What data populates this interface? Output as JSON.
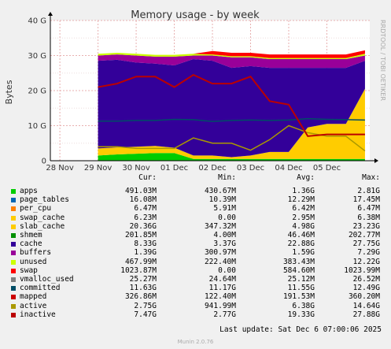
{
  "chart_data": {
    "type": "area",
    "title": "Memory usage - by week",
    "ylabel": "Bytes",
    "side_label": "RRDTOOL / TOBI OETIKER",
    "x_ticks": [
      "28 Nov",
      "29 Nov",
      "30 Nov",
      "01 Dec",
      "02 Dec",
      "03 Dec",
      "04 Dec",
      "05 Dec"
    ],
    "y_ticks": [
      "0",
      "10 G",
      "20 G",
      "30 G",
      "40 G"
    ],
    "ylim": [
      0,
      40
    ],
    "y_unit": "G",
    "x_domain": [
      "27 Nov 18:00",
      "06 Dec 03:00"
    ],
    "data_start": "29 Nov 00:00",
    "grid": true,
    "stacked_series": [
      {
        "name": "apps",
        "color": "#00cc00",
        "cur": "491.03M",
        "min": "430.67M",
        "avg": "1.36G",
        "max": "2.81G"
      },
      {
        "name": "page_tables",
        "color": "#0066b3",
        "cur": "16.08M",
        "min": "10.39M",
        "avg": "12.29M",
        "max": "17.45M"
      },
      {
        "name": "per_cpu",
        "color": "#ff8000",
        "cur": "6.47M",
        "min": "5.91M",
        "avg": "6.42M",
        "max": "6.47M"
      },
      {
        "name": "swap_cache",
        "color": "#ffcc00",
        "cur": "6.23M",
        "min": "0.00",
        "avg": "2.95M",
        "max": "6.38M"
      },
      {
        "name": "slab_cache",
        "color": "#ffcc00",
        "cur": "20.36G",
        "min": "347.32M",
        "avg": "4.98G",
        "max": "23.23G"
      },
      {
        "name": "shmem",
        "color": "#008f00",
        "cur": "201.85M",
        "min": "4.00M",
        "avg": "46.46M",
        "max": "202.77M"
      },
      {
        "name": "cache",
        "color": "#330099",
        "cur": "8.33G",
        "min": "3.37G",
        "avg": "22.88G",
        "max": "27.75G"
      },
      {
        "name": "buffers",
        "color": "#990099",
        "cur": "1.39G",
        "min": "300.97M",
        "avg": "1.59G",
        "max": "7.29G"
      },
      {
        "name": "unused",
        "color": "#ccff00",
        "cur": "467.99M",
        "min": "222.40M",
        "avg": "383.43M",
        "max": "12.22G"
      },
      {
        "name": "swap",
        "color": "#ff0000",
        "cur": "1023.87M",
        "min": "0.00",
        "avg": "584.60M",
        "max": "1023.99M"
      }
    ],
    "line_series": [
      {
        "name": "vmalloc_used",
        "color": "#808080",
        "cur": "25.27M",
        "min": "24.64M",
        "avg": "25.12M",
        "max": "26.52M"
      },
      {
        "name": "committed",
        "color": "#004d66",
        "cur": "11.63G",
        "min": "11.17G",
        "avg": "11.55G",
        "max": "12.49G"
      },
      {
        "name": "mapped",
        "color": "#cc0000",
        "cur": "326.86M",
        "min": "122.40M",
        "avg": "191.53M",
        "max": "360.20M"
      },
      {
        "name": "active",
        "color": "#aa9900",
        "cur": "2.75G",
        "min": "941.99M",
        "avg": "6.38G",
        "max": "14.64G"
      },
      {
        "name": "inactive",
        "color": "#bb0000",
        "cur": "7.47G",
        "min": "2.77G",
        "avg": "19.33G",
        "max": "27.88G"
      }
    ],
    "stack_profile": {
      "x": [
        "29 Nov 00:00",
        "29 Nov 12:00",
        "30 Nov 00:00",
        "30 Nov 12:00",
        "01 Dec 00:00",
        "01 Dec 12:00",
        "02 Dec 00:00",
        "02 Dec 12:00",
        "03 Dec 00:00",
        "03 Dec 12:00",
        "04 Dec 00:00",
        "04 Dec 12:00",
        "05 Dec 00:00",
        "05 Dec 12:00",
        "06 Dec 00:00"
      ],
      "apps": [
        1.5,
        1.8,
        2.0,
        2.2,
        2.2,
        0.5,
        0.5,
        0.5,
        0.5,
        0.5,
        0.5,
        0.5,
        0.5,
        0.5,
        0.5
      ],
      "slab_cache": [
        2.0,
        2.0,
        2.0,
        2.0,
        1.5,
        1.0,
        1.0,
        0.5,
        1.0,
        2.0,
        2.0,
        9.0,
        10.0,
        10.0,
        20.0
      ],
      "cache": [
        25.0,
        25.0,
        24.0,
        23.5,
        23.5,
        27.5,
        27.0,
        25.5,
        25.5,
        24.0,
        24.0,
        17.0,
        16.0,
        16.0,
        8.0
      ],
      "buffers": [
        1.5,
        1.5,
        2.0,
        2.0,
        2.5,
        1.0,
        1.5,
        3.0,
        2.5,
        2.5,
        2.5,
        2.5,
        2.5,
        2.5,
        1.5
      ],
      "unused": [
        0.5,
        0.5,
        0.5,
        0.5,
        0.5,
        0.5,
        0.3,
        0.3,
        0.3,
        0.3,
        0.3,
        0.3,
        0.3,
        0.3,
        0.5
      ],
      "swap": [
        0,
        0,
        0,
        0,
        0,
        0,
        1.0,
        1.0,
        1.0,
        1.0,
        1.0,
        1.0,
        1.0,
        1.0,
        1.0
      ]
    },
    "line_profile": {
      "x": [
        "29 Nov 00:00",
        "29 Nov 12:00",
        "30 Nov 00:00",
        "30 Nov 12:00",
        "01 Dec 00:00",
        "01 Dec 12:00",
        "02 Dec 00:00",
        "02 Dec 12:00",
        "03 Dec 00:00",
        "03 Dec 12:00",
        "04 Dec 00:00",
        "04 Dec 12:00",
        "05 Dec 00:00",
        "05 Dec 12:00",
        "06 Dec 00:00"
      ],
      "committed": [
        11.3,
        11.3,
        11.5,
        11.5,
        11.8,
        11.7,
        11.2,
        11.5,
        11.6,
        11.5,
        11.6,
        12.0,
        11.8,
        11.7,
        11.6
      ],
      "active": [
        4.0,
        4.0,
        3.5,
        3.5,
        3.5,
        6.5,
        5.0,
        5.0,
        3.0,
        6.0,
        10.0,
        8.0,
        7.0,
        7.0,
        2.8
      ],
      "inactive": [
        21.0,
        22.0,
        24.0,
        24.0,
        21.0,
        24.5,
        22.0,
        22.0,
        24.0,
        17.0,
        16.0,
        7.0,
        7.5,
        7.5,
        7.5
      ]
    }
  },
  "legend": {
    "header": {
      "cur": "Cur:",
      "min": "Min:",
      "avg": "Avg:",
      "max": "Max:"
    }
  },
  "footer": {
    "last_update": "Last update: Sat Dec  6 07:00:06 2025",
    "munin": "Munin 2.0.76"
  }
}
